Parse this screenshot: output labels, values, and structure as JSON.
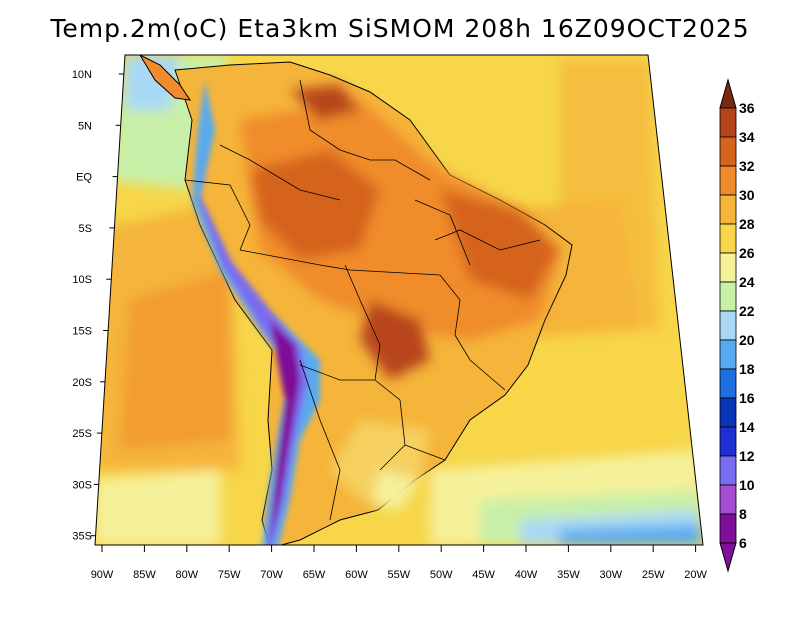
{
  "map": {
    "title": "Temp.2m(oC) Eta3km SiSMOM 208h 16Z09OCT2025",
    "variable": "2m temperature",
    "units": "oC",
    "lat_labels": [
      "10N",
      "5N",
      "EQ",
      "5S",
      "10S",
      "15S",
      "20S",
      "25S",
      "30S",
      "35S"
    ],
    "lon_labels": [
      "90W",
      "85W",
      "80W",
      "75W",
      "70W",
      "65W",
      "60W",
      "55W",
      "50W",
      "45W",
      "40W",
      "35W",
      "30W",
      "25W",
      "20W"
    ],
    "colorbar": {
      "labels": [
        "6",
        "8",
        "10",
        "12",
        "14",
        "16",
        "18",
        "20",
        "22",
        "24",
        "26",
        "28",
        "30",
        "32",
        "34",
        "36"
      ],
      "colors": [
        "#7e0f9a",
        "#a64dd6",
        "#7a6cf0",
        "#1f2fd6",
        "#0a35b8",
        "#1e6fe0",
        "#58aaf0",
        "#a8d8f5",
        "#c8f0a8",
        "#f5f09a",
        "#f7d64a",
        "#f5b43a",
        "#f08c2c",
        "#d6641e",
        "#b8451a",
        "#7a2a10"
      ]
    }
  }
}
